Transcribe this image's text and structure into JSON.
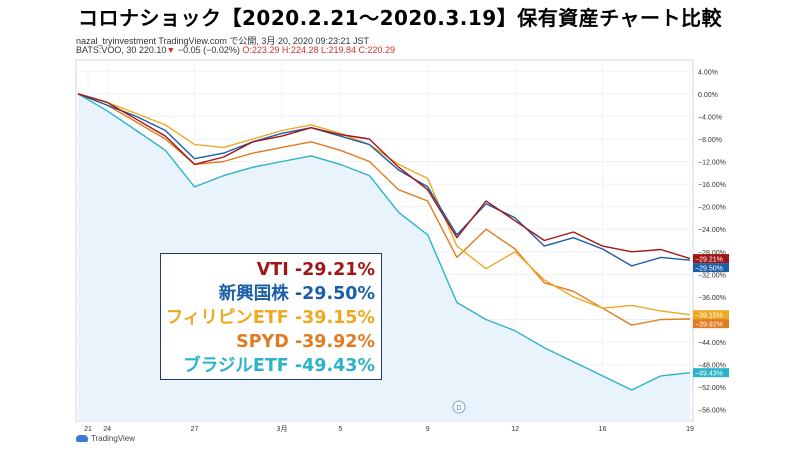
{
  "title": "コロナショック【2020.2.21～2020.3.19】保有資産チャート比較",
  "meta": {
    "line1": "nazal_tryinvestment TradingView.com で公開, 3月 20, 2020 09:23:21 JST",
    "symbol": "BATS:VOO, 30",
    "price": "220.10",
    "change": "−0.05 (−0.02%)",
    "ohlc": "O:223.29 H:224.28 L:219.84 C:220.29"
  },
  "branding": "TradingView",
  "chart_data": {
    "type": "line",
    "y_unit": "%",
    "ylim": [
      -58,
      6
    ],
    "y_ticks": [
      4,
      0,
      -4,
      -8,
      -12,
      -16,
      -20,
      -24,
      -28,
      -32,
      -36,
      -40,
      -44,
      -48,
      -52,
      -56
    ],
    "y_tick_labels": [
      "4.00%",
      "0.00%",
      "−4.00%",
      "−8.00%",
      "−12.00%",
      "−16.00%",
      "−20.00%",
      "−24.00%",
      "−28.00%",
      "−32.00%",
      "−36.00%",
      "−40.00%",
      "−44.00%",
      "−48.00%",
      "−52.00%",
      "−56.00%"
    ],
    "x_ticks": [
      "21",
      "24",
      "27",
      "3月",
      "5",
      "9",
      "12",
      "16",
      "19"
    ],
    "x_tick_index": [
      0,
      1,
      4,
      7,
      9,
      12,
      15,
      18,
      21
    ],
    "grid": true,
    "event_marker": "D",
    "series": [
      {
        "name": "VTI",
        "color": "#a31515",
        "final_label": "-29.21%",
        "final_tag": "−29.21%",
        "values": [
          0,
          -1.5,
          -4.5,
          -7.5,
          -12.5,
          -11.2,
          -8.5,
          -7.5,
          -6.0,
          -7.2,
          -8.0,
          -13.0,
          -17.0,
          -25.5,
          -19.0,
          -22.5,
          -26.0,
          -24.5,
          -27.0,
          -28.0,
          -27.6,
          -29.21
        ]
      },
      {
        "name": "新興国株",
        "color": "#1a5fa8",
        "final_label": "-29.50%",
        "final_tag": "−29.50%",
        "values": [
          0,
          -2.0,
          -4.0,
          -6.5,
          -11.5,
          -10.5,
          -8.5,
          -7.0,
          -6.0,
          -7.5,
          -9.0,
          -13.5,
          -16.5,
          -25.0,
          -19.5,
          -22.0,
          -27.0,
          -25.5,
          -27.5,
          -30.5,
          -29.0,
          -29.5
        ]
      },
      {
        "name": "フィリピンETF",
        "color": "#f0a820",
        "final_label": "-39.15%",
        "final_tag": "−39.15%",
        "values": [
          0,
          -1.5,
          -3.5,
          -5.5,
          -9.0,
          -9.5,
          -8.0,
          -6.5,
          -5.5,
          -7.0,
          -9.0,
          -12.5,
          -15.0,
          -27.0,
          -31.0,
          -28.0,
          -33.0,
          -36.0,
          -38.0,
          -37.5,
          -38.5,
          -39.15
        ]
      },
      {
        "name": "SPYD",
        "color": "#e07b22",
        "final_label": "-39.92%",
        "final_tag": "−39.92%",
        "values": [
          0,
          -2.0,
          -5.0,
          -8.0,
          -12.5,
          -12.0,
          -10.5,
          -9.5,
          -8.5,
          -10.0,
          -12.0,
          -17.0,
          -19.0,
          -29.0,
          -24.0,
          -27.5,
          -33.5,
          -35.0,
          -38.0,
          -41.0,
          -40.0,
          -39.92
        ]
      },
      {
        "name": "ブラジルETF",
        "color": "#2bb3c9",
        "final_label": "-49.43%",
        "final_tag": "−49.43%",
        "values": [
          0,
          -3.0,
          -6.5,
          -10.0,
          -16.5,
          -14.5,
          -13.0,
          -12.0,
          -11.0,
          -12.5,
          -14.5,
          -21.0,
          -25.0,
          -37.0,
          -40.0,
          -42.0,
          -45.0,
          -47.5,
          -50.0,
          -52.5,
          -50.0,
          -49.43
        ]
      }
    ]
  }
}
